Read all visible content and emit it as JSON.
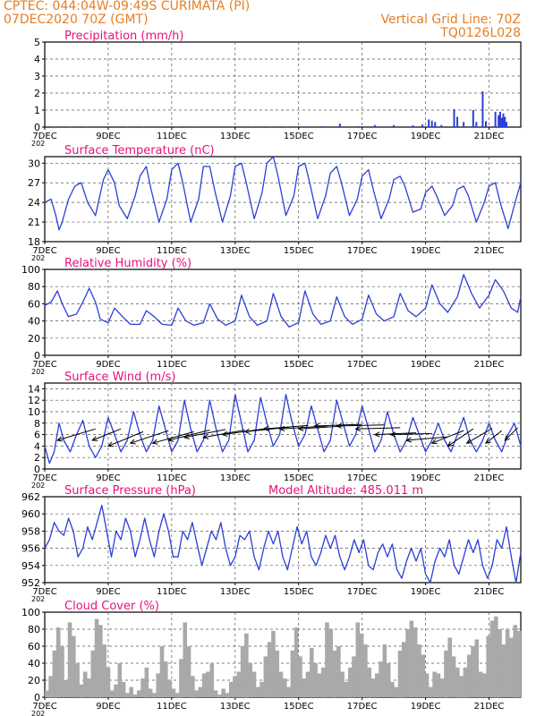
{
  "header": {
    "left_line1": "CPTEC:   044:04W-09:49S   CURIMATA (PI)",
    "left_line2": "07DEC2020 70Z (GMT)",
    "right_line1": "Vertical Grid Line: 70Z",
    "right_line2": "TQ0126L028"
  },
  "colors": {
    "header": "#e67e22",
    "title": "#e8107c",
    "line": "#2b3fd6",
    "bar": "#2b3fd6",
    "cloud": "#a9a9a9",
    "grid": "#555555"
  },
  "x_tick_labels": [
    "7DEC",
    "9DEC",
    "11DEC",
    "13DEC",
    "15DEC",
    "17DEC",
    "19DEC",
    "21DEC"
  ],
  "x_tick_days": [
    0,
    2,
    4,
    6,
    8,
    10,
    12,
    14
  ],
  "x_range_days": [
    0,
    15
  ],
  "year_stub": "202",
  "chart_data": [
    {
      "id": "precip",
      "type": "bar",
      "title": "Precipitation (mm/h)",
      "ylim": [
        0,
        5
      ],
      "yticks": [
        0,
        1,
        2,
        3,
        4,
        5
      ],
      "x_unit": "days since 07DEC2020",
      "x": [
        0.3,
        0.8,
        1.3,
        2.0,
        2.6,
        3.1,
        3.7,
        4.2,
        4.8,
        5.4,
        5.9,
        6.5,
        7.1,
        7.6,
        8.2,
        8.7,
        9.3,
        9.9,
        10.4,
        11.0,
        11.6,
        11.9,
        12.1,
        12.2,
        12.3,
        12.5,
        12.9,
        13.0,
        13.2,
        13.5,
        13.6,
        13.8,
        13.9,
        14.2,
        14.3,
        14.35,
        14.4,
        14.45,
        14.5,
        14.55
      ],
      "values": [
        0.02,
        0.02,
        0.02,
        0.02,
        0.03,
        0.02,
        0.02,
        0.03,
        0.02,
        0.03,
        0.02,
        0.03,
        0.03,
        0.02,
        0.04,
        0.05,
        0.2,
        0.05,
        0.12,
        0.12,
        0.1,
        0.15,
        0.45,
        0.38,
        0.3,
        0.12,
        1.05,
        0.6,
        0.3,
        1.0,
        0.3,
        2.1,
        0.35,
        0.9,
        0.7,
        0.9,
        0.55,
        0.8,
        0.6,
        0.3
      ]
    },
    {
      "id": "temp",
      "type": "line",
      "title": "Surface Temperature (nC)",
      "ylim": [
        18,
        31
      ],
      "yticks": [
        18,
        21,
        24,
        27,
        30
      ],
      "x_unit": "days since 07DEC2020",
      "x": [
        0,
        0.2,
        0.35,
        0.45,
        0.55,
        0.75,
        0.95,
        1.15,
        1.35,
        1.6,
        1.85,
        2.0,
        2.2,
        2.35,
        2.6,
        2.85,
        3.0,
        3.2,
        3.35,
        3.6,
        3.85,
        4.0,
        4.2,
        4.35,
        4.6,
        4.85,
        5.0,
        5.2,
        5.35,
        5.6,
        5.85,
        6.0,
        6.2,
        6.35,
        6.6,
        6.85,
        7.0,
        7.2,
        7.35,
        7.6,
        7.85,
        8.0,
        8.2,
        8.35,
        8.6,
        8.85,
        9.0,
        9.2,
        9.35,
        9.6,
        9.85,
        10.0,
        10.2,
        10.35,
        10.6,
        10.85,
        11.0,
        11.2,
        11.35,
        11.6,
        11.85,
        12.0,
        12.2,
        12.35,
        12.6,
        12.85,
        13.0,
        13.2,
        13.35,
        13.6,
        13.85,
        14.0,
        14.2,
        14.35,
        14.6,
        14.85,
        15.0
      ],
      "values": [
        24,
        24.5,
        22,
        19.8,
        21,
        24.5,
        26.5,
        27,
        24,
        22,
        27.5,
        29,
        27,
        23.5,
        21.5,
        25,
        28,
        29.5,
        26,
        21,
        24.5,
        29,
        30,
        27,
        21,
        24.5,
        29.5,
        29.5,
        26,
        21,
        25,
        29.5,
        30,
        27,
        21.5,
        25.5,
        30,
        31,
        28,
        22,
        25,
        29.5,
        30,
        27,
        21.5,
        25,
        28.5,
        29.5,
        27,
        22,
        24.5,
        28,
        29,
        26,
        21.5,
        24.5,
        27.5,
        28,
        26.5,
        22.5,
        23,
        25.5,
        26.5,
        25,
        22,
        23.5,
        26,
        26.5,
        25,
        21,
        24,
        26.5,
        27,
        24,
        20,
        24.5,
        27
      ]
    },
    {
      "id": "rh",
      "type": "line",
      "title": "Relative Humidity (%)",
      "ylim": [
        0,
        100
      ],
      "yticks": [
        0,
        20,
        40,
        60,
        80,
        100
      ],
      "x_unit": "days since 07DEC2020",
      "x": [
        0,
        0.2,
        0.4,
        0.55,
        0.75,
        1.0,
        1.2,
        1.4,
        1.6,
        1.75,
        2.0,
        2.2,
        2.45,
        2.7,
        3.0,
        3.2,
        3.45,
        3.7,
        4.0,
        4.2,
        4.45,
        4.7,
        5.0,
        5.2,
        5.45,
        5.7,
        6.0,
        6.2,
        6.45,
        6.7,
        7.0,
        7.2,
        7.45,
        7.7,
        8.0,
        8.2,
        8.45,
        8.7,
        9.0,
        9.2,
        9.45,
        9.7,
        10.0,
        10.2,
        10.45,
        10.7,
        11.0,
        11.2,
        11.45,
        11.7,
        12.0,
        12.2,
        12.45,
        12.7,
        13.0,
        13.2,
        13.45,
        13.7,
        14.0,
        14.2,
        14.45,
        14.7,
        14.9,
        15.0
      ],
      "values": [
        58,
        62,
        75,
        60,
        45,
        48,
        62,
        78,
        62,
        42,
        38,
        55,
        45,
        36,
        36,
        52,
        45,
        36,
        35,
        55,
        40,
        35,
        38,
        60,
        42,
        35,
        40,
        70,
        45,
        35,
        40,
        72,
        45,
        33,
        38,
        75,
        48,
        36,
        40,
        68,
        45,
        36,
        42,
        70,
        48,
        40,
        45,
        72,
        52,
        45,
        55,
        82,
        60,
        50,
        68,
        94,
        72,
        55,
        70,
        88,
        75,
        55,
        50,
        68
      ]
    },
    {
      "id": "wind",
      "type": "line",
      "title": "Surface Wind (m/s)",
      "ylim": [
        0,
        15
      ],
      "yticks": [
        0,
        2,
        4,
        6,
        8,
        10,
        12,
        14
      ],
      "x_unit": "days since 07DEC2020",
      "x": [
        0,
        0.15,
        0.3,
        0.45,
        0.6,
        0.8,
        1.0,
        1.2,
        1.4,
        1.6,
        1.8,
        2.0,
        2.2,
        2.4,
        2.6,
        2.8,
        3.0,
        3.2,
        3.4,
        3.6,
        3.8,
        4.0,
        4.2,
        4.4,
        4.6,
        4.8,
        5.0,
        5.2,
        5.4,
        5.6,
        5.8,
        6.0,
        6.2,
        6.4,
        6.6,
        6.8,
        7.0,
        7.2,
        7.4,
        7.6,
        7.8,
        8.0,
        8.2,
        8.4,
        8.6,
        8.8,
        9.0,
        9.2,
        9.4,
        9.6,
        9.8,
        10.0,
        10.2,
        10.4,
        10.6,
        10.8,
        11.0,
        11.2,
        11.4,
        11.6,
        11.8,
        12.0,
        12.2,
        12.4,
        12.6,
        12.8,
        13.0,
        13.2,
        13.4,
        13.6,
        13.8,
        14.0,
        14.2,
        14.4,
        14.6,
        14.8,
        15.0
      ],
      "values": [
        4,
        1,
        3,
        8,
        5,
        3,
        6,
        8.5,
        4,
        2,
        4,
        9,
        6,
        3,
        5,
        10,
        6,
        3,
        5,
        11,
        7,
        3,
        5,
        12,
        7,
        3,
        5,
        12,
        7,
        3,
        5,
        13,
        8,
        3,
        5,
        12.5,
        8,
        4,
        6,
        13,
        8,
        4,
        6,
        11,
        7,
        3,
        5,
        12,
        8,
        4,
        6,
        11,
        7,
        3,
        5,
        10,
        6,
        3,
        5,
        9,
        6,
        3,
        5,
        8,
        5,
        3,
        6,
        9,
        5,
        3,
        5,
        8,
        5,
        3,
        6,
        8,
        4
      ],
      "arrows": {
        "x": [
          0.4,
          1.5,
          2.0,
          2.7,
          3.4,
          3.9,
          4.4,
          5.0,
          5.6,
          6.3,
          6.9,
          7.4,
          8.0,
          8.5,
          9.2,
          9.8,
          10.4,
          10.9,
          11.4,
          12.2,
          12.7,
          13.3,
          13.9,
          14.5
        ],
        "y": [
          5,
          5,
          4,
          4.5,
          4.5,
          5,
          5.5,
          5.5,
          6,
          6.5,
          7,
          7,
          7,
          7.5,
          7.5,
          7,
          6,
          6,
          5,
          4.5,
          4,
          4.5,
          4.5,
          5
        ],
        "dx": [
          1.2,
          0.9,
          1.1,
          1.2,
          1.3,
          1.3,
          1.3,
          1.3,
          1.3,
          1.4,
          1.4,
          1.5,
          1.4,
          1.5,
          1.5,
          1.4,
          1.3,
          1.3,
          1.3,
          1.0,
          0.8,
          0.8,
          0.5,
          0.4
        ],
        "dy": [
          2,
          2,
          2.5,
          2.2,
          2,
          1.8,
          1.4,
          1.3,
          1.0,
          0.8,
          0.6,
          0.5,
          0.5,
          0.3,
          0.2,
          0.2,
          0.3,
          0.2,
          0.6,
          2.2,
          3,
          2.6,
          2.2,
          2.2
        ]
      }
    },
    {
      "id": "pressure",
      "type": "line",
      "title": "Surface Pressure (hPa)",
      "annotation": "Model Altitude: 485.011 m",
      "ylim": [
        952,
        962
      ],
      "yticks": [
        952,
        954,
        956,
        958,
        960,
        962
      ],
      "x_unit": "days since 07DEC2020",
      "x": [
        0,
        0.15,
        0.3,
        0.45,
        0.6,
        0.75,
        0.9,
        1.05,
        1.2,
        1.35,
        1.5,
        1.65,
        1.8,
        1.95,
        2.1,
        2.25,
        2.4,
        2.55,
        2.7,
        2.85,
        3.0,
        3.15,
        3.3,
        3.45,
        3.6,
        3.75,
        3.9,
        4.05,
        4.2,
        4.35,
        4.5,
        4.65,
        4.8,
        4.95,
        5.1,
        5.25,
        5.4,
        5.55,
        5.7,
        5.85,
        6.0,
        6.15,
        6.3,
        6.45,
        6.6,
        6.75,
        6.9,
        7.05,
        7.2,
        7.35,
        7.5,
        7.65,
        7.8,
        7.95,
        8.1,
        8.25,
        8.4,
        8.55,
        8.7,
        8.85,
        9.0,
        9.15,
        9.3,
        9.45,
        9.6,
        9.75,
        9.9,
        10.05,
        10.2,
        10.35,
        10.5,
        10.65,
        10.8,
        10.95,
        11.1,
        11.25,
        11.4,
        11.55,
        11.7,
        11.85,
        12.0,
        12.15,
        12.3,
        12.45,
        12.6,
        12.75,
        12.9,
        13.05,
        13.2,
        13.35,
        13.5,
        13.65,
        13.8,
        13.95,
        14.1,
        14.25,
        14.4,
        14.55,
        14.7,
        14.85,
        15.0
      ],
      "values": [
        956,
        957,
        959,
        958,
        957.5,
        959.5,
        958,
        955,
        956,
        958.5,
        957,
        959,
        961,
        958,
        955,
        958,
        957,
        959.5,
        958,
        955,
        957,
        959.5,
        957,
        955,
        958,
        960,
        958,
        955,
        955,
        958,
        957,
        959,
        956.5,
        954,
        956,
        958,
        957,
        959,
        956,
        954,
        955,
        957.5,
        957,
        958,
        955,
        953.5,
        956,
        958,
        956.5,
        958,
        955,
        953.5,
        956,
        958.5,
        956.5,
        958,
        955,
        954,
        955.5,
        957.5,
        956,
        957.5,
        955,
        953.5,
        955,
        957,
        955.5,
        957,
        954,
        953.5,
        955.5,
        956.5,
        955,
        956.5,
        953.5,
        952.5,
        954.5,
        956,
        954.5,
        956,
        953,
        952,
        954.5,
        956,
        955,
        957,
        954,
        953,
        955,
        957,
        955.5,
        957,
        954,
        952.5,
        954,
        957,
        956,
        958.5,
        955,
        952,
        955.5
      ]
    },
    {
      "id": "cloud",
      "type": "bar",
      "title": "Cloud Cover (%)",
      "ylim": [
        0,
        100
      ],
      "yticks": [
        0,
        20,
        40,
        60,
        80,
        100
      ],
      "x_unit": "days since 07DEC2020",
      "bins_per_day": 8,
      "values": [
        8,
        25,
        55,
        82,
        60,
        20,
        88,
        72,
        40,
        15,
        30,
        22,
        55,
        92,
        85,
        62,
        35,
        8,
        15,
        40,
        18,
        5,
        12,
        3,
        8,
        22,
        35,
        10,
        5,
        28,
        60,
        42,
        20,
        10,
        5,
        45,
        88,
        60,
        25,
        8,
        12,
        28,
        30,
        40,
        8,
        3,
        10,
        5,
        18,
        25,
        30,
        60,
        75,
        40,
        30,
        12,
        18,
        48,
        65,
        78,
        55,
        30,
        22,
        12,
        55,
        82,
        48,
        22,
        30,
        58,
        40,
        28,
        35,
        88,
        80,
        55,
        60,
        30,
        18,
        35,
        48,
        88,
        75,
        62,
        35,
        22,
        28,
        42,
        62,
        40,
        18,
        12,
        55,
        65,
        80,
        90,
        82,
        62,
        50,
        28,
        12,
        30,
        28,
        22,
        55,
        70,
        48,
        35,
        25,
        35,
        50,
        60,
        68,
        30,
        28,
        72,
        90,
        95,
        80,
        62,
        80,
        70,
        85,
        78
      ]
    }
  ]
}
